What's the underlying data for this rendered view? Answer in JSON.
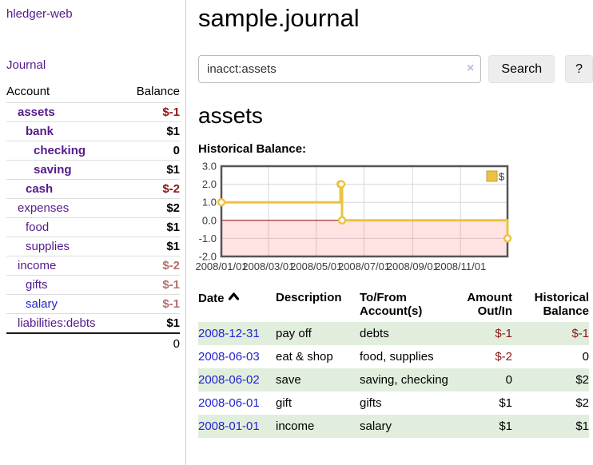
{
  "app": {
    "title": "hledger-web",
    "nav_journal": "Journal"
  },
  "sidebar": {
    "headers": {
      "account": "Account",
      "balance": "Balance"
    },
    "accounts": [
      {
        "name": "assets",
        "depth": 1,
        "bold": true,
        "link_color": "purple",
        "balance": "$-1",
        "balance_style": "neg-strong"
      },
      {
        "name": "bank",
        "depth": 2,
        "bold": true,
        "link_color": "purple",
        "balance": "$1",
        "balance_style": "normal"
      },
      {
        "name": "checking",
        "depth": 3,
        "bold": true,
        "link_color": "purple",
        "balance": "0",
        "balance_style": "normal"
      },
      {
        "name": "saving",
        "depth": 3,
        "bold": true,
        "link_color": "purple",
        "balance": "$1",
        "balance_style": "normal"
      },
      {
        "name": "cash",
        "depth": 2,
        "bold": true,
        "link_color": "purple",
        "balance": "$-2",
        "balance_style": "neg-strong"
      },
      {
        "name": "expenses",
        "depth": 1,
        "bold": false,
        "link_color": "purple",
        "balance": "$2",
        "balance_style": "normal"
      },
      {
        "name": "food",
        "depth": 2,
        "bold": false,
        "link_color": "purple",
        "balance": "$1",
        "balance_style": "normal"
      },
      {
        "name": "supplies",
        "depth": 2,
        "bold": false,
        "link_color": "purple",
        "balance": "$1",
        "balance_style": "normal"
      },
      {
        "name": "income",
        "depth": 1,
        "bold": false,
        "link_color": "purple",
        "balance": "$-2",
        "balance_style": "neg-soft"
      },
      {
        "name": "gifts",
        "depth": 2,
        "bold": false,
        "link_color": "purple",
        "balance": "$-1",
        "balance_style": "neg-soft"
      },
      {
        "name": "salary",
        "depth": 2,
        "bold": false,
        "link_color": "blue",
        "balance": "$-1",
        "balance_style": "neg-soft"
      },
      {
        "name": "liabilities:debts",
        "depth": 1,
        "bold": false,
        "link_color": "purple",
        "balance": "$1",
        "balance_style": "normal"
      }
    ],
    "total": "0"
  },
  "header": {
    "title": "sample.journal"
  },
  "search": {
    "value": "inacct:assets",
    "clear_icon": "×",
    "button": "Search",
    "help_button": "?"
  },
  "account_page": {
    "heading": "assets",
    "chart_label": "Historical Balance:"
  },
  "chart_data": {
    "type": "line",
    "steps": true,
    "title": "Historical Balance",
    "xlim": [
      "2008-01-01",
      "2008-12-31"
    ],
    "ylim": [
      -2,
      3
    ],
    "series": [
      {
        "name": "$",
        "color": "#edc240",
        "points": [
          [
            "2008-01-01",
            1
          ],
          [
            "2008-06-01",
            2
          ],
          [
            "2008-06-02",
            2
          ],
          [
            "2008-06-03",
            0
          ],
          [
            "2008-12-31",
            -1
          ]
        ]
      }
    ],
    "x_ticks": [
      {
        "label": "2008/01/01",
        "date": "2008-01-01"
      },
      {
        "label": "2008/03/01",
        "date": "2008-03-01"
      },
      {
        "label": "2008/05/01",
        "date": "2008-05-01"
      },
      {
        "label": "2008/07/01",
        "date": "2008-07-01"
      },
      {
        "label": "2008/09/01",
        "date": "2008-09-01"
      },
      {
        "label": "2008/11/01",
        "date": "2008-11-01"
      }
    ],
    "y_ticks": [
      {
        "label": "3.0",
        "value": 3
      },
      {
        "label": "2.0",
        "value": 2
      },
      {
        "label": "1.0",
        "value": 1
      },
      {
        "label": "0.0",
        "value": 0
      },
      {
        "label": "-1.0",
        "value": -1
      },
      {
        "label": "-2.0",
        "value": -2
      }
    ],
    "legend_position": "top-right",
    "grid": true,
    "colors": {
      "grid_line": "#d7d7d7",
      "plot_border": "#545454",
      "zero_line": "#8b0000",
      "negative_fill": "rgba(255,82,82,0.16)",
      "marker_fill": "#ffffff"
    }
  },
  "register": {
    "headers": {
      "date": "Date",
      "description": "Description",
      "tofrom": "To/From Account(s)",
      "amount": "Amount Out/In",
      "balance": "Historical Balance"
    },
    "rows": [
      {
        "date": "2008-12-31",
        "description": "pay off",
        "accounts": "debts",
        "amount": "$-1",
        "amount_neg": true,
        "balance": "$-1",
        "balance_neg": true,
        "shaded": true
      },
      {
        "date": "2008-06-03",
        "description": "eat & shop",
        "accounts": "food, supplies",
        "amount": "$-2",
        "amount_neg": true,
        "balance": "0",
        "balance_neg": false,
        "shaded": false
      },
      {
        "date": "2008-06-02",
        "description": "save",
        "accounts": "saving, checking",
        "amount": "0",
        "amount_neg": false,
        "balance": "$2",
        "balance_neg": false,
        "shaded": true
      },
      {
        "date": "2008-06-01",
        "description": "gift",
        "accounts": "gifts",
        "amount": "$1",
        "amount_neg": false,
        "balance": "$2",
        "balance_neg": false,
        "shaded": false
      },
      {
        "date": "2008-01-01",
        "description": "income",
        "accounts": "salary",
        "amount": "$1",
        "amount_neg": false,
        "balance": "$1",
        "balance_neg": false,
        "shaded": true
      }
    ]
  },
  "icons": {
    "sort_ascending": "chevron-up",
    "clear_search": "x-mark"
  },
  "colors": {
    "link_purple": "#551a8b",
    "link_blue": "#2323cf",
    "neg_strong": "#8f1414",
    "neg_soft": "#b5706e",
    "row_shaded": "#e1eedd",
    "series_gold": "#edc240"
  }
}
